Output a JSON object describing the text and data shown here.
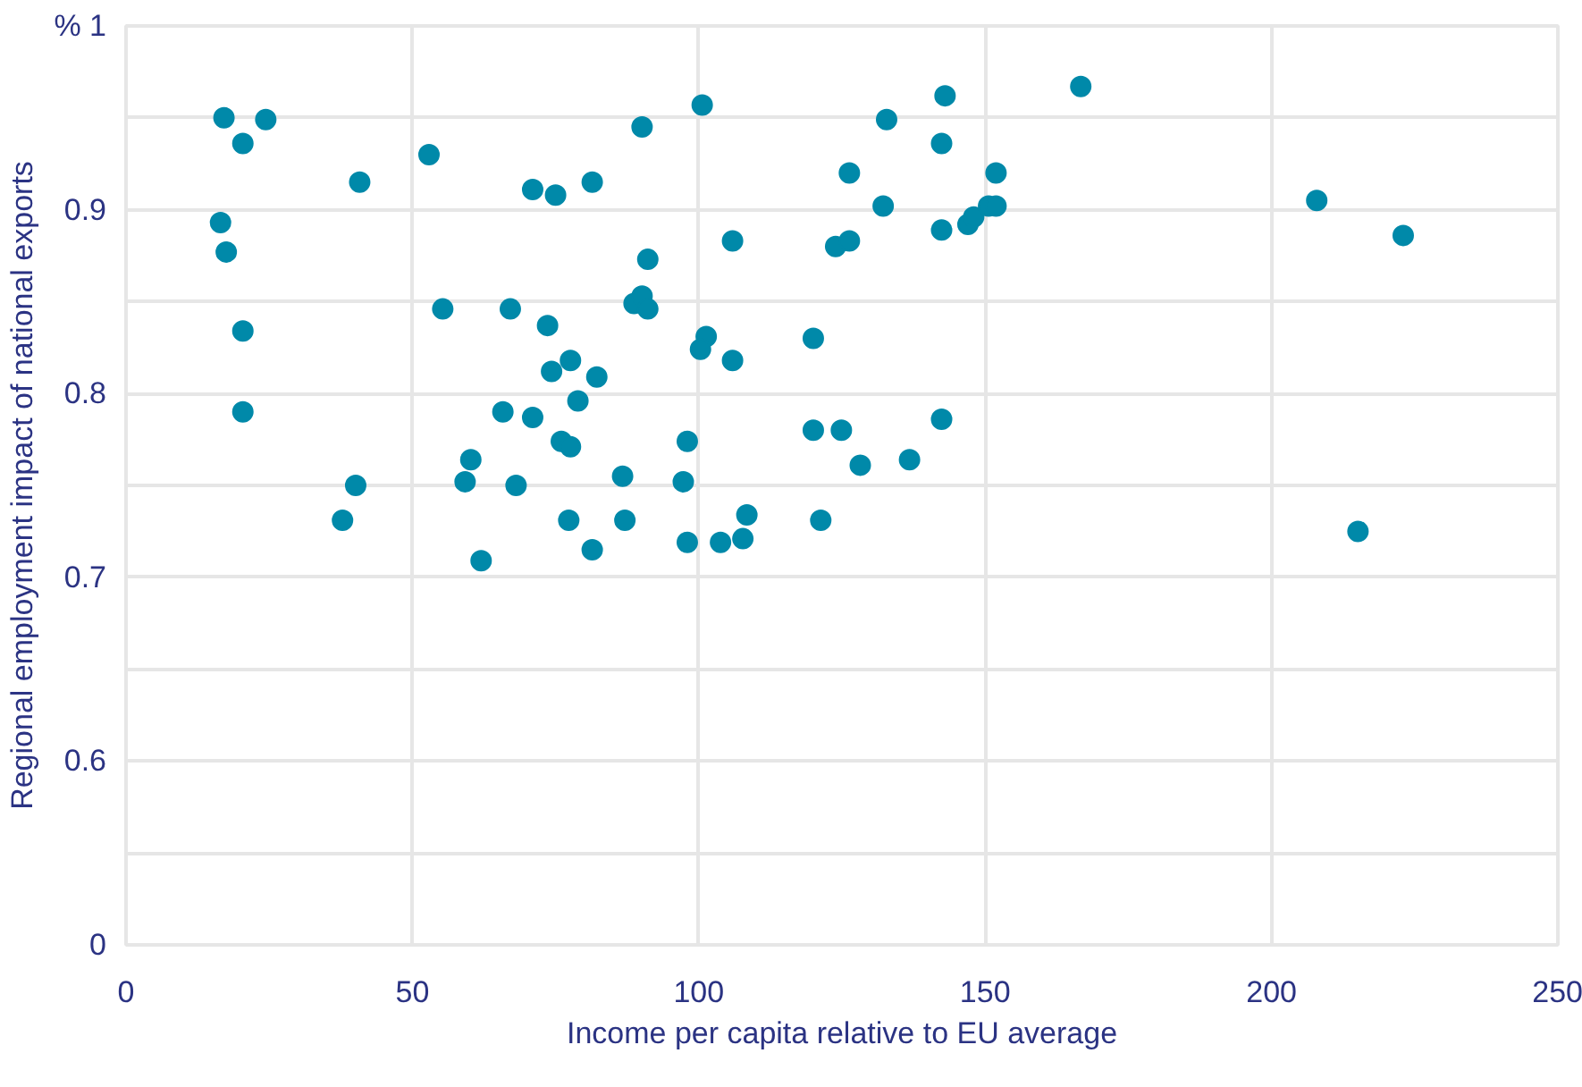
{
  "chart_data": {
    "type": "scatter",
    "xlabel": "Income per capita relative to EU average",
    "ylabel": "Regional employment impact of national exports",
    "x": [
      17.1,
      20.4,
      24.4,
      16.5,
      17.5,
      20.4,
      20.4,
      40.8,
      40.1,
      37.8,
      52.9,
      55.3,
      67.1,
      71,
      75,
      81.4,
      73.6,
      74.3,
      77.6,
      78.9,
      82.2,
      65.8,
      71,
      76,
      77.6,
      60.2,
      59.2,
      68.1,
      62,
      77.3,
      81.4,
      86.7,
      87.1,
      90.1,
      100.6,
      91.1,
      88.7,
      90.1,
      91.1,
      101.3,
      100.3,
      105.9,
      105.9,
      98,
      97.3,
      108.4,
      107.7,
      103.8,
      98,
      120,
      120,
      124.9,
      128.2,
      136.8,
      142.4,
      121.3,
      126.3,
      132.8,
      143,
      142.4,
      132.2,
      123.9,
      126.3,
      142.4,
      147,
      148,
      150.6,
      151.9,
      151.9,
      166.7,
      207.9,
      223,
      215.1
    ],
    "series": [
      {
        "color": "#0089a9",
        "values": [
          0.95,
          0.936,
          0.949,
          0.893,
          0.877,
          0.834,
          0.79,
          0.915,
          0.75,
          0.731,
          0.93,
          0.846,
          0.846,
          0.911,
          0.908,
          0.915,
          0.837,
          0.812,
          0.818,
          0.796,
          0.809,
          0.79,
          0.787,
          0.774,
          0.771,
          0.764,
          0.752,
          0.75,
          0.709,
          0.731,
          0.715,
          0.755,
          0.731,
          0.945,
          0.957,
          0.873,
          0.849,
          0.853,
          0.846,
          0.831,
          0.824,
          0.818,
          0.883,
          0.774,
          0.752,
          0.734,
          0.721,
          0.719,
          0.719,
          0.83,
          0.78,
          0.78,
          0.761,
          0.764,
          0.786,
          0.731,
          0.92,
          0.949,
          0.962,
          0.936,
          0.902,
          0.88,
          0.883,
          0.889,
          0.892,
          0.896,
          0.902,
          0.902,
          0.92,
          0.967,
          0.905,
          0.886,
          0.725
        ]
      }
    ],
    "xlim": [
      0,
      250
    ],
    "xticks": [
      0,
      50,
      100,
      150,
      200,
      250
    ],
    "ylim": [
      0.5,
      1
    ],
    "yticks": [
      {
        "value": 0.5,
        "label": "0"
      },
      {
        "value": 0.55,
        "label": null
      },
      0.6,
      {
        "value": 0.65,
        "label": null
      },
      0.7,
      {
        "value": 0.75,
        "label": null
      },
      0.8,
      {
        "value": 0.85,
        "label": null
      },
      0.9,
      {
        "value": 0.95,
        "label": null
      },
      {
        "value": 1,
        "label": "% 1"
      }
    ],
    "grid": true,
    "marker": "circle"
  }
}
